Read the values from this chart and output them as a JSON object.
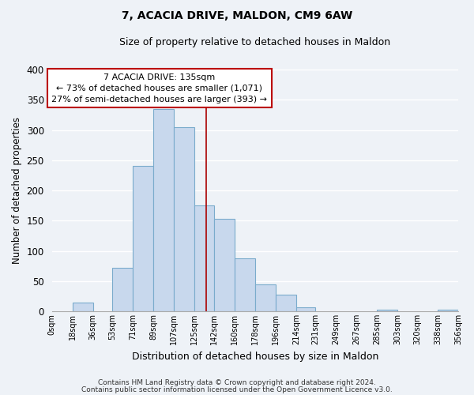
{
  "title": "7, ACACIA DRIVE, MALDON, CM9 6AW",
  "subtitle": "Size of property relative to detached houses in Maldon",
  "xlabel": "Distribution of detached houses by size in Maldon",
  "ylabel": "Number of detached properties",
  "bar_color": "#c8d8ed",
  "bar_edge_color": "#7aabcc",
  "background_color": "#eef2f7",
  "grid_color": "white",
  "bin_edges": [
    0,
    18,
    36,
    53,
    71,
    89,
    107,
    125,
    142,
    160,
    178,
    196,
    214,
    231,
    249,
    267,
    285,
    303,
    320,
    338,
    356
  ],
  "bin_labels": [
    "0sqm",
    "18sqm",
    "36sqm",
    "53sqm",
    "71sqm",
    "89sqm",
    "107sqm",
    "125sqm",
    "142sqm",
    "160sqm",
    "178sqm",
    "196sqm",
    "214sqm",
    "231sqm",
    "249sqm",
    "267sqm",
    "285sqm",
    "303sqm",
    "320sqm",
    "338sqm",
    "356sqm"
  ],
  "bar_heights": [
    0,
    15,
    0,
    72,
    240,
    335,
    305,
    175,
    153,
    87,
    44,
    28,
    7,
    0,
    0,
    0,
    2,
    0,
    0,
    2
  ],
  "red_line_x": 135,
  "annotation_title": "7 ACACIA DRIVE: 135sqm",
  "annotation_line1": "← 73% of detached houses are smaller (1,071)",
  "annotation_line2": "27% of semi-detached houses are larger (393) →",
  "annotation_box_color": "white",
  "annotation_box_edge": "#bb0000",
  "red_line_color": "#aa0000",
  "footer1": "Contains HM Land Registry data © Crown copyright and database right 2024.",
  "footer2": "Contains public sector information licensed under the Open Government Licence v3.0.",
  "ylim": [
    0,
    400
  ],
  "yticks": [
    0,
    50,
    100,
    150,
    200,
    250,
    300,
    350,
    400
  ],
  "figsize": [
    6.0,
    5.0
  ],
  "dpi": 100
}
